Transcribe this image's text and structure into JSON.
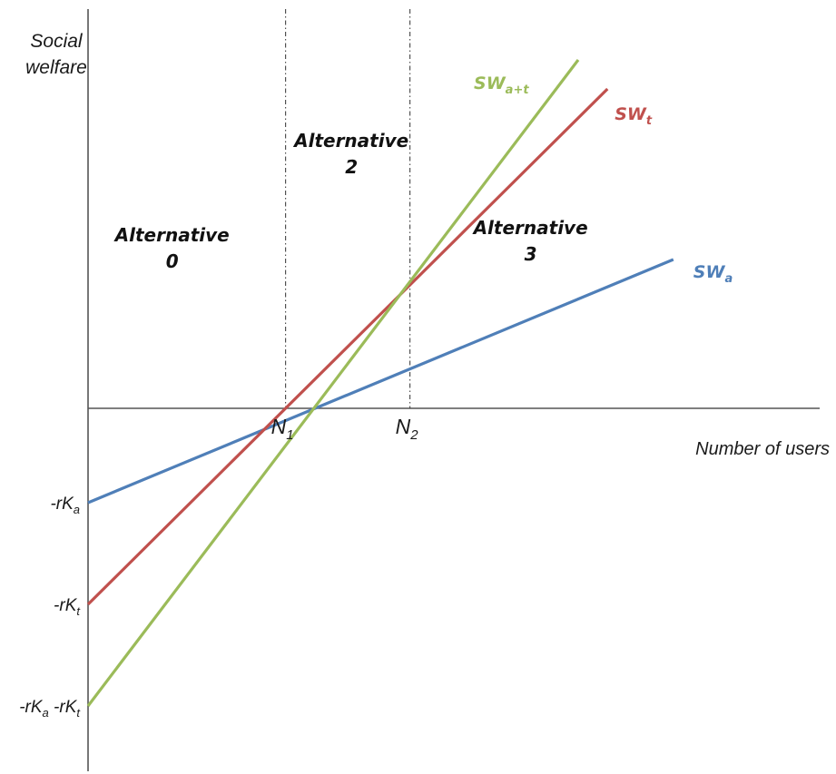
{
  "chart_data": {
    "type": "line",
    "title": "",
    "ylabel_lines": [
      "Social",
      "welfare"
    ],
    "xlabel": "Number of users",
    "xlim": [
      0,
      10
    ],
    "ylim": [
      -5,
      5
    ],
    "grid": false,
    "legend": "inline-labels",
    "x_axis_at_y": 0,
    "series": [
      {
        "name": "SW_a",
        "label_main": "SW",
        "label_sub": "a",
        "color": "#4f7fb8",
        "x": [
          0,
          8
        ],
        "y": [
          -1.3,
          2.05
        ]
      },
      {
        "name": "SW_t",
        "label_main": "SW",
        "label_sub": "t",
        "color": "#c0504d",
        "x": [
          0,
          7.1
        ],
        "y": [
          -2.7,
          4.4
        ]
      },
      {
        "name": "SW_a+t",
        "label_main": "SW",
        "label_sub": "a+t",
        "color": "#9bbb59",
        "x": [
          0,
          6.7
        ],
        "y": [
          -4.1,
          4.8
        ]
      }
    ],
    "vlines": [
      {
        "name": "N1",
        "x": 2.7,
        "label_main": "N",
        "label_sub": "1"
      },
      {
        "name": "N2",
        "x": 4.4,
        "label_main": "N",
        "label_sub": "2"
      }
    ],
    "y_ticks": [
      {
        "name": "rKa",
        "y": -1.3,
        "parts": [
          {
            "t": "-rK",
            "s": "a"
          }
        ]
      },
      {
        "name": "rKt",
        "y": -2.7,
        "parts": [
          {
            "t": "-rK",
            "s": "t"
          }
        ]
      },
      {
        "name": "rKa-rKt",
        "y": -4.1,
        "parts": [
          {
            "t": "-rK",
            "s": "a"
          },
          {
            "t": " -rK",
            "s": "t"
          }
        ]
      }
    ],
    "regions": [
      {
        "name": "alternative-0",
        "lines": [
          "Alternative",
          "0"
        ],
        "x": 1.15,
        "y": 2.3
      },
      {
        "name": "alternative-2",
        "lines": [
          "Alternative",
          "2"
        ],
        "x": 3.6,
        "y": 3.6
      },
      {
        "name": "alternative-3",
        "lines": [
          "Alternative",
          "3"
        ],
        "x": 6.05,
        "y": 2.4
      }
    ]
  }
}
